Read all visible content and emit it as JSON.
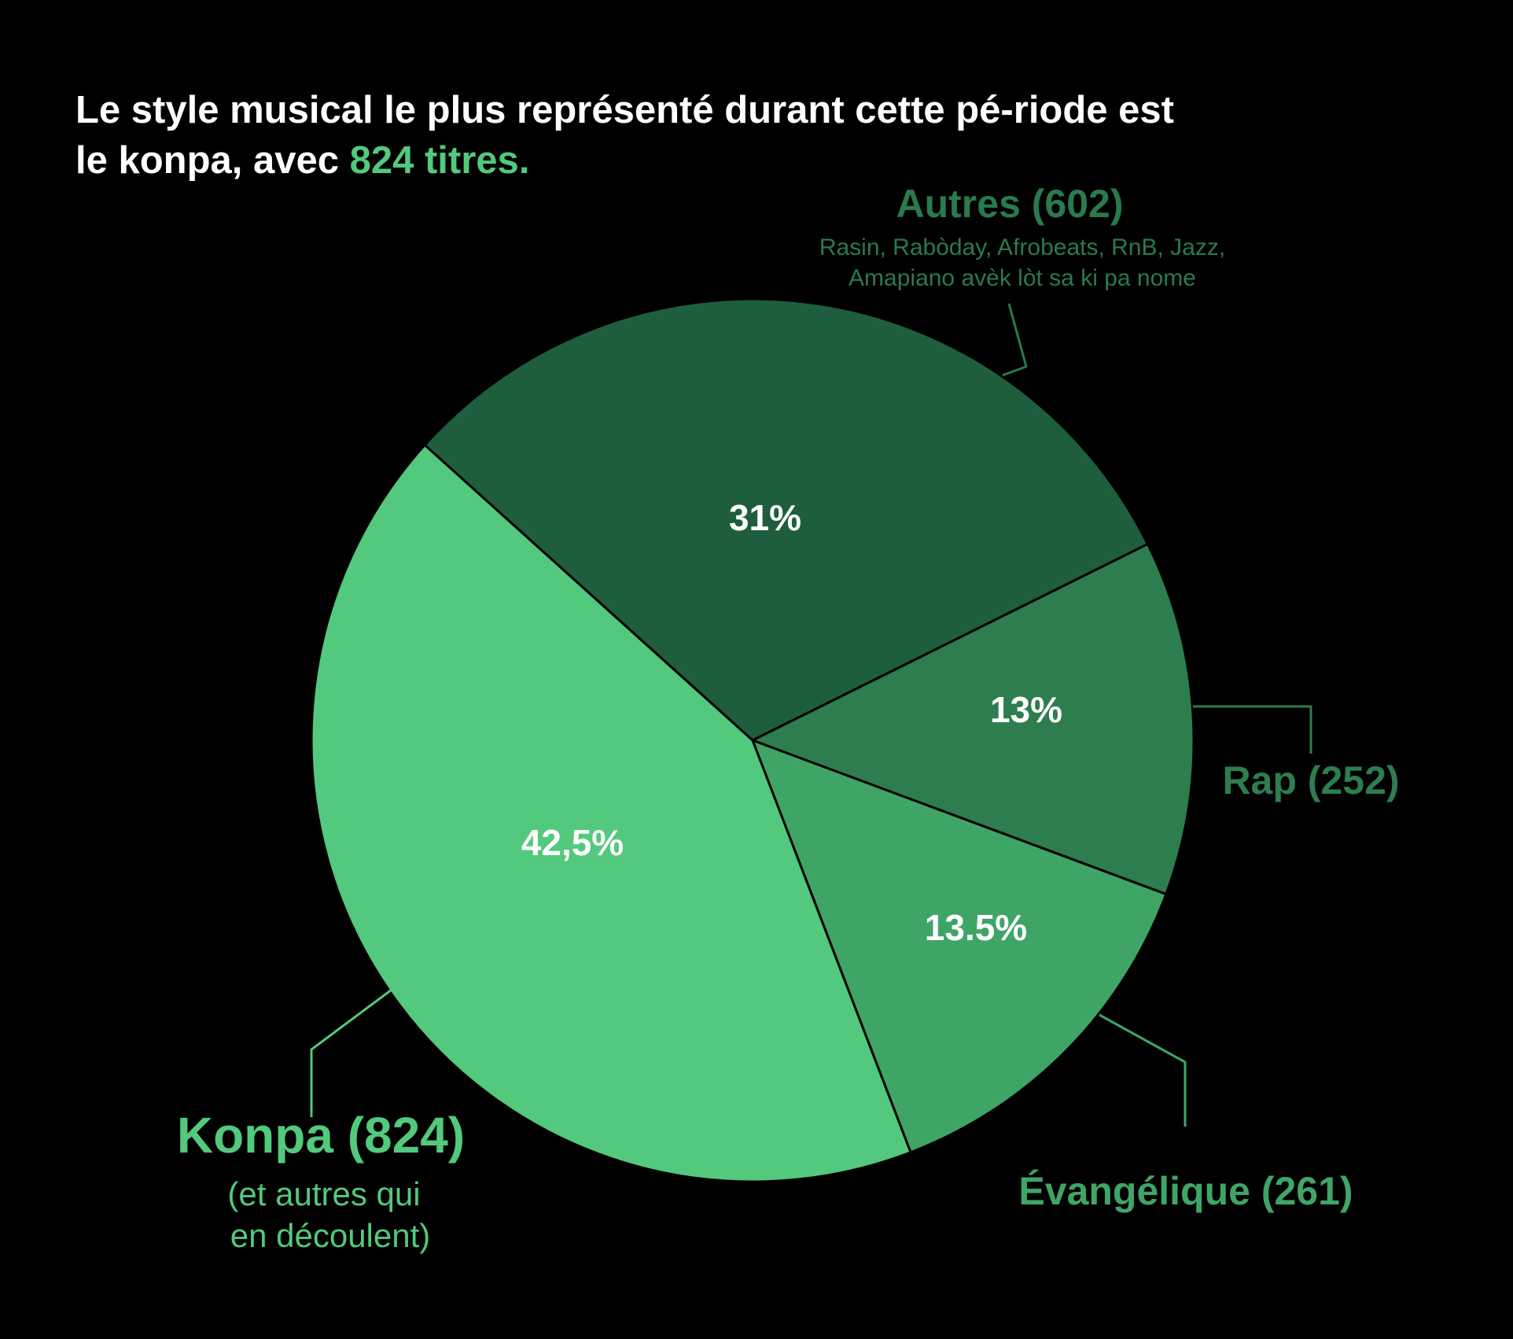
{
  "headline": {
    "text": "Le style musical le plus représenté durant cette pé-riode est le konpa, avec ",
    "highlight": "824 titres."
  },
  "colors": {
    "background": "#000000",
    "konpa": "#52c97c",
    "evangelique": "#3fa567",
    "rap": "#2e7d4f",
    "autres": "#1e5e3c",
    "label_konpa": "#52c97c",
    "label_dark": "#2e7d4f",
    "label_autres": "#2a7a4c",
    "pct_text": "#ffffff"
  },
  "chart_data": {
    "type": "pie",
    "start_angle_deg": -48,
    "direction": "clockwise",
    "slices": [
      {
        "name": "Autres",
        "count": 602,
        "value": 31,
        "pct_label": "31%",
        "label": "Autres (602)",
        "sublabel": [
          "Rasin, Rabòday, Afrobeats, RnB, Jazz,",
          "Amapiano avèk lòt sa ki pa nome"
        ],
        "color_key": "autres"
      },
      {
        "name": "Rap",
        "count": 252,
        "value": 13,
        "pct_label": "13%",
        "label": "Rap (252)",
        "sublabel": [],
        "color_key": "rap"
      },
      {
        "name": "Évangélique",
        "count": 261,
        "value": 13.5,
        "pct_label": "13.5%",
        "label": "Évangélique (261)",
        "sublabel": [],
        "color_key": "evangelique"
      },
      {
        "name": "Konpa",
        "count": 824,
        "value": 42.5,
        "pct_label": "42,5%",
        "label": "Konpa (824)",
        "sublabel": [
          "(et autres qui",
          "en découlent)"
        ],
        "color_key": "konpa"
      }
    ]
  }
}
